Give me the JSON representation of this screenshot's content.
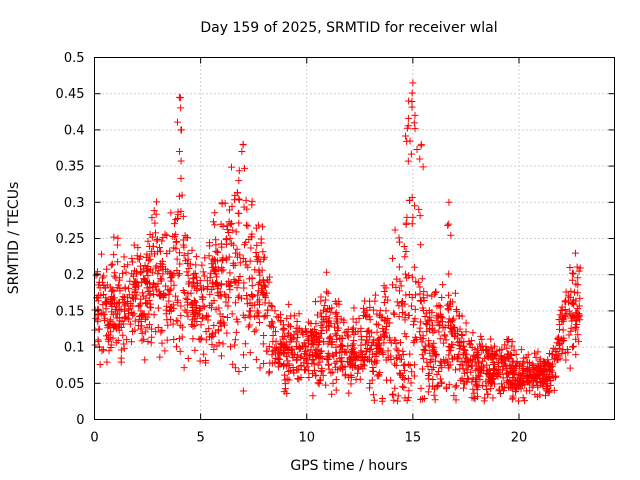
{
  "chart_data": {
    "type": "scatter",
    "title": "Day 159 of 2025, SRMTID for receiver wlal",
    "xlabel": "GPS time / hours",
    "ylabel": "SRMTID / TECUs",
    "xlim": [
      0,
      24.5
    ],
    "ylim": [
      0,
      0.5
    ],
    "xticks": [
      0,
      5,
      10,
      15,
      20
    ],
    "xtick_labels": [
      "0",
      "5",
      "10",
      "15",
      "20"
    ],
    "yticks": [
      0,
      0.05,
      0.1,
      0.15,
      0.2,
      0.25,
      0.3,
      0.35,
      0.4,
      0.45,
      0.5
    ],
    "ytick_labels": [
      "0",
      "0.05",
      "0.1",
      "0.15",
      "0.2",
      "0.25",
      "0.3",
      "0.35",
      "0.4",
      "0.45",
      "0.5"
    ],
    "grid": true,
    "marker": "plus",
    "marker_color": "#ff0000",
    "x_range": [
      0,
      22.9
    ],
    "envelope": {
      "x": [
        0,
        0.5,
        1,
        1.5,
        2,
        2.5,
        3,
        3.5,
        4,
        4.5,
        5,
        5.5,
        6,
        6.5,
        7,
        7.5,
        8,
        8.5,
        9,
        9.5,
        10,
        10.5,
        11,
        11.5,
        12,
        12.5,
        13,
        13.5,
        14,
        14.5,
        15,
        15.5,
        16,
        16.5,
        17,
        17.5,
        18,
        18.5,
        19,
        19.5,
        20,
        20.5,
        21,
        21.5,
        22,
        22.5,
        22.9
      ],
      "center": [
        0.15,
        0.15,
        0.16,
        0.16,
        0.17,
        0.18,
        0.2,
        0.18,
        0.24,
        0.16,
        0.16,
        0.17,
        0.2,
        0.22,
        0.2,
        0.18,
        0.17,
        0.11,
        0.1,
        0.1,
        0.1,
        0.1,
        0.12,
        0.1,
        0.09,
        0.1,
        0.1,
        0.11,
        0.12,
        0.15,
        0.2,
        0.12,
        0.1,
        0.12,
        0.1,
        0.08,
        0.07,
        0.07,
        0.07,
        0.07,
        0.06,
        0.06,
        0.06,
        0.06,
        0.12,
        0.15,
        0.16
      ],
      "spread": [
        0.05,
        0.05,
        0.05,
        0.05,
        0.05,
        0.05,
        0.07,
        0.06,
        0.1,
        0.05,
        0.06,
        0.06,
        0.08,
        0.1,
        0.1,
        0.07,
        0.06,
        0.04,
        0.04,
        0.04,
        0.03,
        0.04,
        0.06,
        0.04,
        0.03,
        0.04,
        0.04,
        0.05,
        0.07,
        0.12,
        0.15,
        0.07,
        0.05,
        0.07,
        0.05,
        0.04,
        0.03,
        0.03,
        0.03,
        0.03,
        0.02,
        0.02,
        0.02,
        0.02,
        0.04,
        0.05,
        0.04
      ]
    },
    "peaks": [
      {
        "x": 4.0,
        "y": 0.445
      },
      {
        "x": 4.1,
        "y": 0.4
      },
      {
        "x": 6.8,
        "y": 0.33
      },
      {
        "x": 7.0,
        "y": 0.38
      },
      {
        "x": 14.8,
        "y": 0.44
      },
      {
        "x": 15.0,
        "y": 0.465
      },
      {
        "x": 15.1,
        "y": 0.42
      },
      {
        "x": 15.4,
        "y": 0.38
      },
      {
        "x": 16.7,
        "y": 0.3
      },
      {
        "x": 22.4,
        "y": 0.21
      }
    ]
  }
}
